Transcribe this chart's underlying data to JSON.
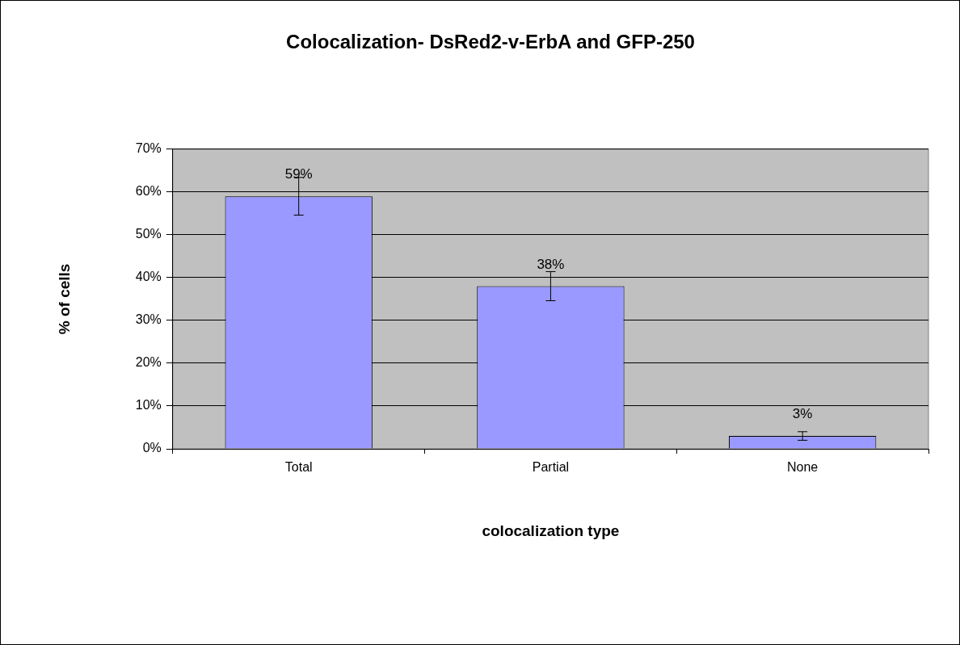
{
  "chart_data": {
    "type": "bar",
    "title": "Colocalization- DsRed2-v-ErbA and GFP-250",
    "xlabel": "colocalization type",
    "ylabel": "% of cells",
    "categories": [
      "Total",
      "Partial",
      "None"
    ],
    "values": [
      59,
      38,
      3
    ],
    "errors": [
      4.4,
      3.4,
      1
    ],
    "value_labels": [
      "59%",
      "38%",
      "3%"
    ],
    "color": "#9999ff",
    "ylim": [
      0,
      70
    ],
    "yticks": [
      {
        "value": 0,
        "label": "0%"
      },
      {
        "value": 10,
        "label": "10%"
      },
      {
        "value": 20,
        "label": "20%"
      },
      {
        "value": 30,
        "label": "30%"
      },
      {
        "value": 40,
        "label": "40%"
      },
      {
        "value": 50,
        "label": "50%"
      },
      {
        "value": 60,
        "label": "60%"
      },
      {
        "value": 70,
        "label": "70%"
      }
    ],
    "grid": "y",
    "legend": false
  }
}
